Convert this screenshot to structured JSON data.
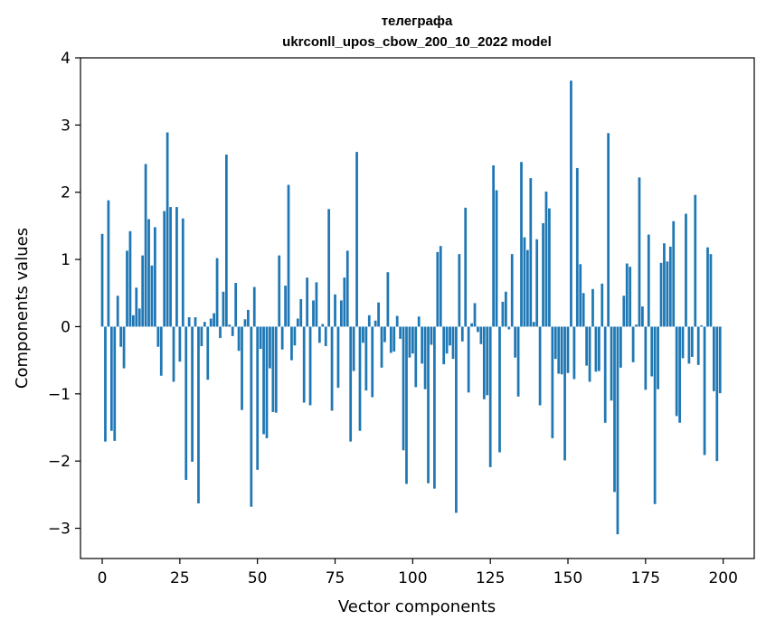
{
  "chart_data": {
    "type": "bar",
    "title": "телеграфа",
    "subtitle": "ukrconll_upos_cbow_200_10_2022 model",
    "xlabel": "Vector components",
    "ylabel": "Components values",
    "xlim": [
      -7,
      210
    ],
    "ylim": [
      -3.45,
      4
    ],
    "xticks": [
      0,
      25,
      50,
      75,
      100,
      125,
      150,
      175,
      200
    ],
    "yticks": [
      -3,
      -2,
      -1,
      0,
      1,
      2,
      3,
      4
    ],
    "xtick_labels": [
      "0",
      "25",
      "50",
      "75",
      "100",
      "125",
      "150",
      "175",
      "200"
    ],
    "ytick_labels": [
      "−3",
      "−2",
      "−1",
      "0",
      "1",
      "2",
      "3",
      "4"
    ],
    "grid": false,
    "color": "#1f77b4",
    "values": [
      1.38,
      -1.71,
      1.88,
      -1.55,
      -1.7,
      0.46,
      -0.3,
      -0.62,
      1.13,
      1.42,
      0.17,
      0.58,
      0.27,
      1.06,
      2.42,
      1.6,
      0.91,
      1.48,
      -0.3,
      -0.73,
      1.72,
      2.89,
      1.78,
      -0.82,
      1.78,
      -0.52,
      1.61,
      -2.28,
      0.14,
      -2.01,
      0.14,
      -2.63,
      -0.29,
      0.07,
      -0.79,
      0.12,
      0.2,
      1.02,
      -0.17,
      0.52,
      2.56,
      0.03,
      -0.14,
      0.65,
      -0.36,
      -1.24,
      0.11,
      0.25,
      -2.68,
      0.59,
      -2.13,
      -0.33,
      -1.6,
      -1.66,
      -0.62,
      -1.27,
      -1.28,
      1.06,
      -0.34,
      0.61,
      2.11,
      -0.5,
      -0.28,
      0.12,
      0.41,
      -1.13,
      0.73,
      -1.17,
      0.39,
      0.66,
      -0.24,
      0.04,
      -0.29,
      1.75,
      -1.25,
      0.48,
      -0.91,
      0.39,
      0.73,
      1.13,
      -1.71,
      -0.66,
      2.6,
      -1.55,
      -0.24,
      -0.95,
      0.17,
      -1.05,
      0.09,
      0.36,
      -0.61,
      -0.23,
      0.81,
      -0.39,
      -0.37,
      0.16,
      -0.18,
      -1.84,
      -2.34,
      -0.46,
      -0.4,
      -0.9,
      0.15,
      -0.55,
      -0.93,
      -2.33,
      -0.27,
      -2.41,
      1.11,
      1.2,
      -0.56,
      -0.4,
      -0.28,
      -0.48,
      -2.77,
      1.08,
      -0.22,
      1.77,
      -0.98,
      0.05,
      0.35,
      -0.08,
      -0.26,
      -1.08,
      -1.02,
      -2.09,
      2.4,
      2.03,
      -1.87,
      0.37,
      0.52,
      -0.04,
      1.08,
      -0.46,
      -1.04,
      2.45,
      1.33,
      1.14,
      2.21,
      0.07,
      1.3,
      -1.17,
      1.54,
      2.01,
      1.76,
      -1.66,
      -0.48,
      -0.7,
      -0.71,
      -1.99,
      -0.69,
      3.66,
      -0.78,
      2.36,
      0.93,
      0.5,
      -0.58,
      -0.82,
      0.56,
      -0.67,
      -0.66,
      0.64,
      -1.43,
      2.88,
      -1.1,
      -2.46,
      -3.09,
      -0.61,
      0.46,
      0.94,
      0.89,
      -0.53,
      0.03,
      2.22,
      0.3,
      -0.94,
      1.37,
      -0.74,
      -2.64,
      -0.93,
      0.95,
      1.24,
      0.97,
      1.19,
      1.57,
      -1.33,
      -1.43,
      -0.47,
      1.68,
      -0.55,
      -0.45,
      1.96,
      -0.57,
      0.02,
      -1.91,
      1.18,
      1.08,
      -0.96,
      -2.0,
      -0.99
    ]
  }
}
